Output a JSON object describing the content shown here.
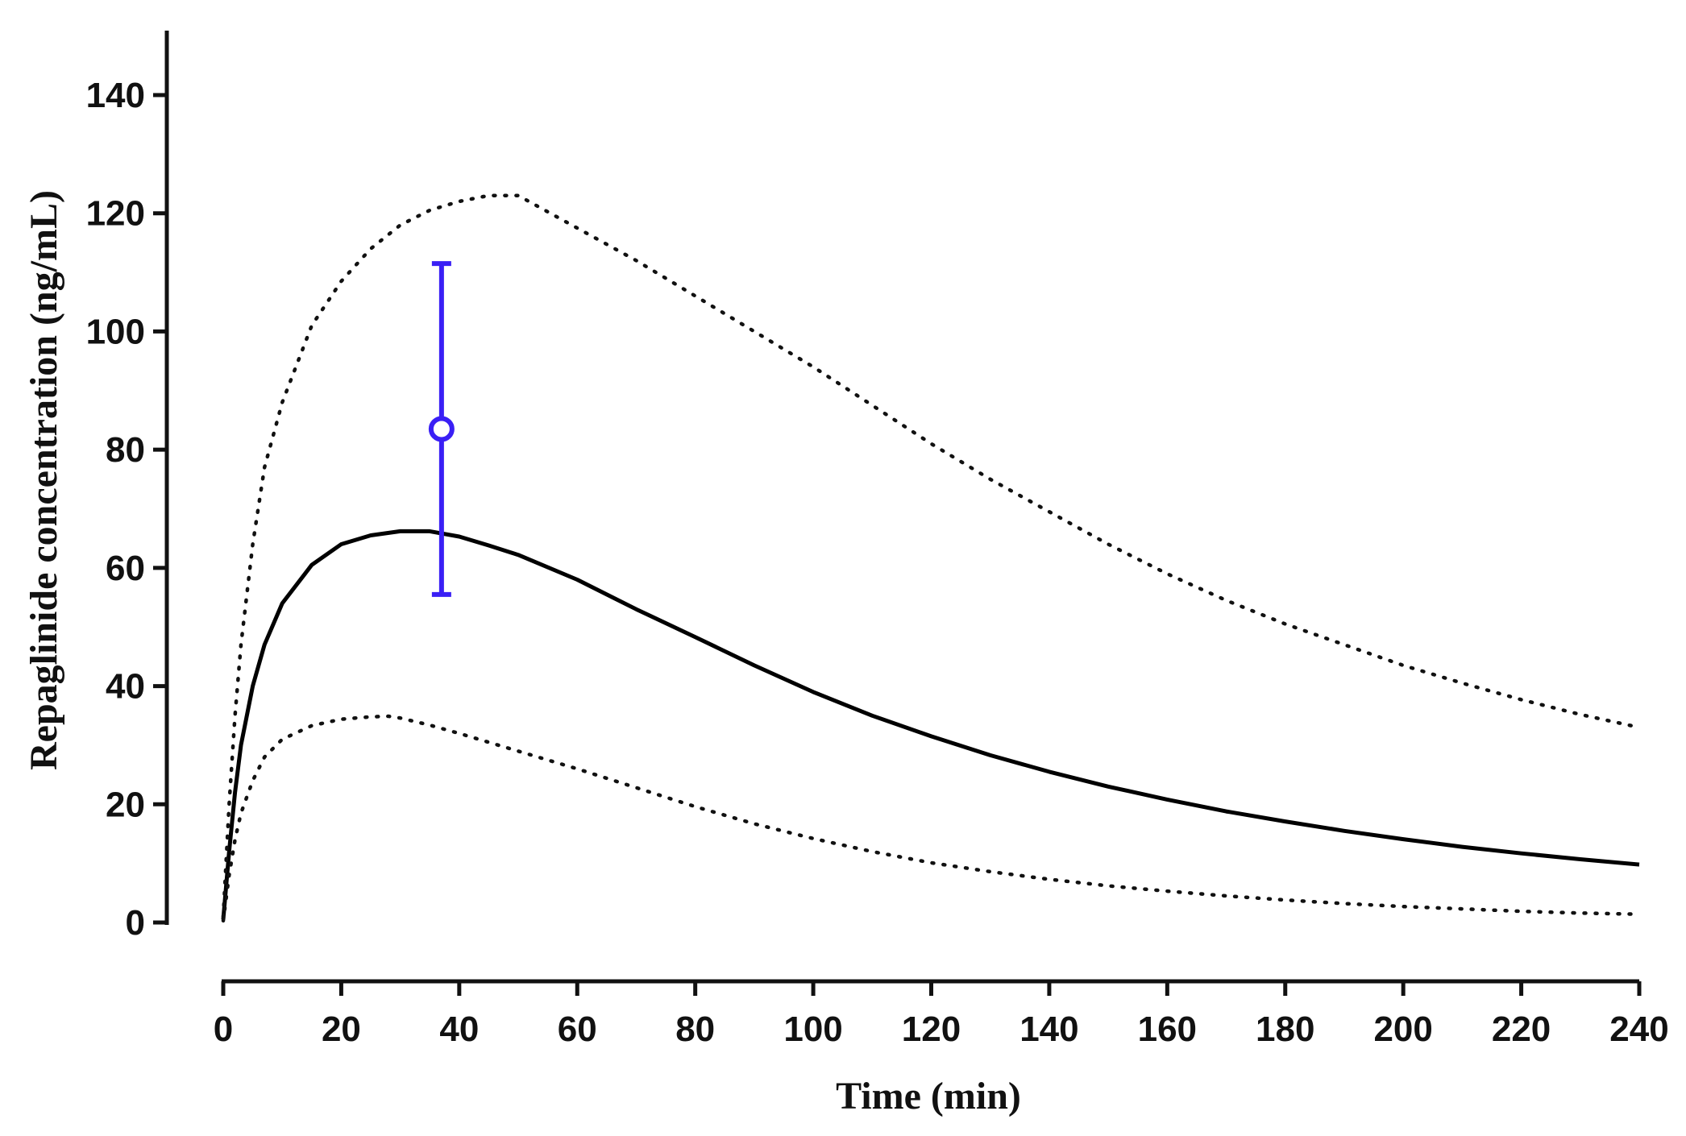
{
  "chart_data": {
    "type": "line",
    "xlabel": "Time (min)",
    "ylabel": "Repaglinide concentration (ng/mL)",
    "xlim": [
      0,
      240
    ],
    "ylim": [
      0,
      150
    ],
    "x_ticks": [
      0,
      20,
      40,
      60,
      80,
      100,
      120,
      140,
      160,
      180,
      200,
      220,
      240
    ],
    "y_ticks": [
      0,
      20,
      40,
      60,
      80,
      100,
      120,
      140
    ],
    "grid": false,
    "series": [
      {
        "style": "solid",
        "color": "#000000",
        "x": [
          0,
          1,
          2,
          3,
          5,
          7,
          10,
          15,
          20,
          25,
          30,
          35,
          40,
          45,
          50,
          60,
          70,
          80,
          90,
          100,
          110,
          120,
          130,
          140,
          150,
          160,
          170,
          180,
          190,
          200,
          210,
          220,
          230,
          240
        ],
        "y": [
          0.5,
          12,
          22,
          30,
          40,
          47,
          54,
          60.5,
          64,
          65.5,
          66.2,
          66.2,
          65.3,
          63.8,
          62.2,
          58,
          53,
          48.3,
          43.5,
          39,
          35,
          31.5,
          28.3,
          25.5,
          23,
          20.8,
          18.8,
          17.1,
          15.5,
          14.1,
          12.8,
          11.7,
          10.7,
          9.8
        ]
      },
      {
        "style": "dotted",
        "color": "#111111",
        "x": [
          0,
          1,
          2,
          3,
          5,
          7,
          10,
          15,
          20,
          25,
          30,
          35,
          40,
          45,
          50,
          60,
          70,
          80,
          90,
          100,
          110,
          120,
          130,
          140,
          150,
          160,
          170,
          180,
          190,
          200,
          210,
          220,
          230,
          240
        ],
        "y": [
          1,
          20,
          35,
          47,
          64,
          77,
          88,
          101,
          108.5,
          114,
          118,
          120.5,
          122,
          123,
          123,
          117.5,
          112,
          106,
          100,
          94,
          87.5,
          81,
          75,
          69.5,
          64,
          59,
          54.5,
          50.5,
          47,
          43.5,
          40.5,
          37.7,
          35.2,
          33
        ]
      },
      {
        "style": "dotted",
        "color": "#111111",
        "x": [
          0,
          1,
          2,
          3,
          5,
          7,
          10,
          15,
          20,
          25,
          28,
          30,
          35,
          40,
          50,
          60,
          70,
          80,
          90,
          100,
          110,
          120,
          130,
          140,
          150,
          160,
          170,
          180,
          190,
          200,
          210,
          220,
          230,
          240
        ],
        "y": [
          0.3,
          8,
          14,
          18.5,
          24,
          28,
          31,
          33.3,
          34.4,
          34.8,
          34.9,
          34.6,
          33.4,
          32,
          29,
          26,
          22.8,
          19.6,
          16.7,
          14.2,
          12,
          10.1,
          8.6,
          7.3,
          6.2,
          5.3,
          4.5,
          3.8,
          3.2,
          2.7,
          2.3,
          1.9,
          1.6,
          1.4
        ]
      }
    ],
    "observed": {
      "color": "#3a1ff5",
      "x": 37,
      "y": 83.5,
      "y_low": 55.5,
      "y_high": 111.5
    }
  }
}
